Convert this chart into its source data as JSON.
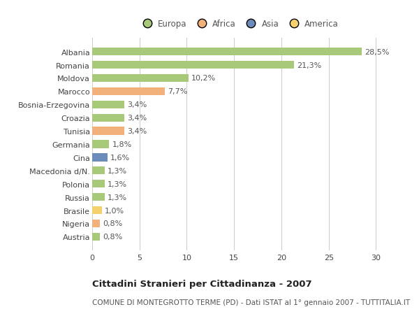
{
  "countries": [
    "Albania",
    "Romania",
    "Moldova",
    "Marocco",
    "Bosnia-Erzegovina",
    "Croazia",
    "Tunisia",
    "Germania",
    "Cina",
    "Macedonia d/N.",
    "Polonia",
    "Russia",
    "Brasile",
    "Nigeria",
    "Austria"
  ],
  "values": [
    28.5,
    21.3,
    10.2,
    7.7,
    3.4,
    3.4,
    3.4,
    1.8,
    1.6,
    1.3,
    1.3,
    1.3,
    1.0,
    0.8,
    0.8
  ],
  "labels": [
    "28,5%",
    "21,3%",
    "10,2%",
    "7,7%",
    "3,4%",
    "3,4%",
    "3,4%",
    "1,8%",
    "1,6%",
    "1,3%",
    "1,3%",
    "1,3%",
    "1,0%",
    "0,8%",
    "0,8%"
  ],
  "continents": [
    "Europa",
    "Europa",
    "Europa",
    "Africa",
    "Europa",
    "Europa",
    "Africa",
    "Europa",
    "Asia",
    "Europa",
    "Europa",
    "Europa",
    "America",
    "Africa",
    "Europa"
  ],
  "colors": {
    "Europa": "#a8c87a",
    "Africa": "#f2b07a",
    "Asia": "#6b8cba",
    "America": "#f5d16e"
  },
  "title": "Cittadini Stranieri per Cittadinanza - 2007",
  "subtitle": "COMUNE DI MONTEGROTTO TERME (PD) - Dati ISTAT al 1° gennaio 2007 - TUTTITALIA.IT",
  "xlim": [
    0,
    31
  ],
  "xticks": [
    0,
    5,
    10,
    15,
    20,
    25,
    30
  ],
  "background_color": "#ffffff",
  "grid_color": "#cccccc",
  "bar_height": 0.6,
  "label_fontsize": 8,
  "tick_fontsize": 8,
  "title_fontsize": 9.5,
  "subtitle_fontsize": 7.5,
  "legend_fontsize": 8.5,
  "legend_order": [
    "Europa",
    "Africa",
    "Asia",
    "America"
  ]
}
